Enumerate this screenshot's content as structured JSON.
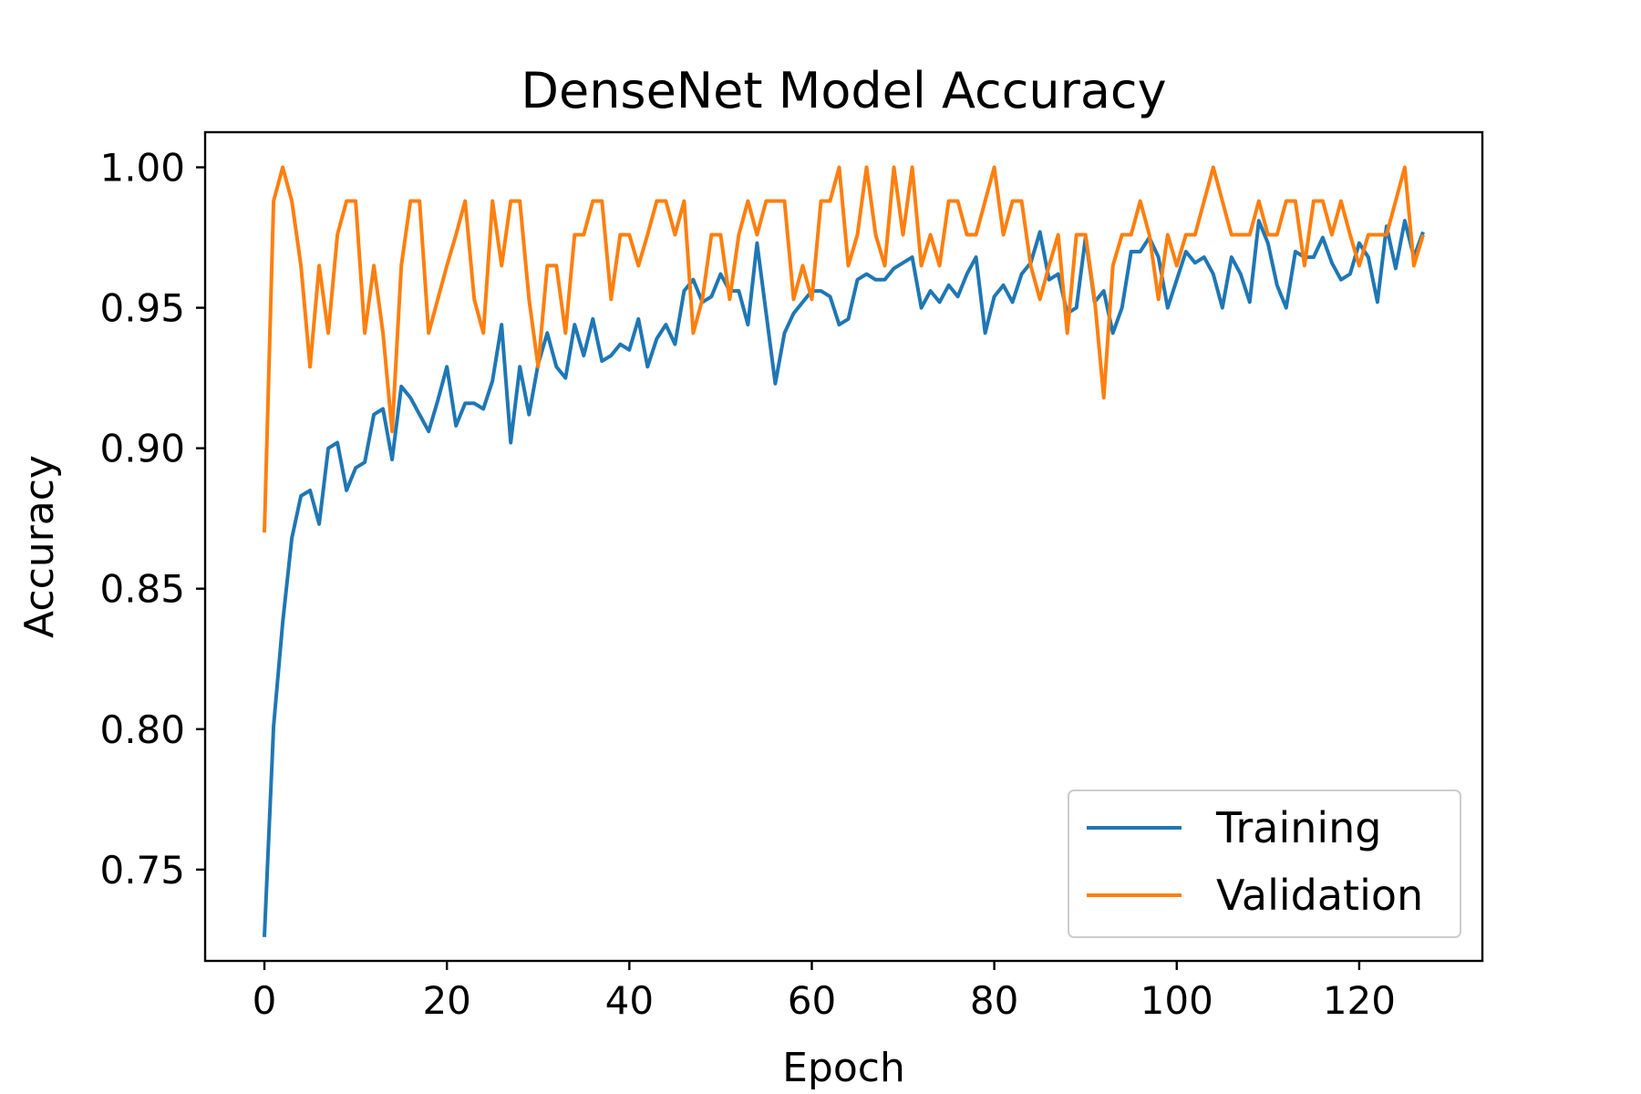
{
  "chart_data": {
    "type": "line",
    "title": "DenseNet Model Accuracy",
    "xlabel": "Epoch",
    "ylabel": "Accuracy",
    "xlim": [
      -6.5,
      133.5
    ],
    "ylim": [
      0.7175,
      1.0125
    ],
    "xticks": [
      0,
      20,
      40,
      60,
      80,
      100,
      120
    ],
    "yticks": [
      0.75,
      0.8,
      0.85,
      0.9,
      0.95,
      1.0
    ],
    "ytick_labels": [
      "0.75",
      "0.80",
      "0.85",
      "0.90",
      "0.95",
      "1.00"
    ],
    "grid": false,
    "legend_position": "lower-right",
    "series": [
      {
        "name": "Training",
        "color": "#1f77b4",
        "values": [
          0.726,
          0.801,
          0.838,
          0.868,
          0.883,
          0.885,
          0.873,
          0.9,
          0.902,
          0.885,
          0.893,
          0.895,
          0.912,
          0.914,
          0.896,
          0.922,
          0.918,
          0.912,
          0.906,
          0.917,
          0.929,
          0.908,
          0.916,
          0.916,
          0.914,
          0.924,
          0.944,
          0.902,
          0.929,
          0.912,
          0.93,
          0.941,
          0.929,
          0.925,
          0.944,
          0.933,
          0.946,
          0.931,
          0.933,
          0.937,
          0.935,
          0.946,
          0.929,
          0.939,
          0.944,
          0.937,
          0.956,
          0.96,
          0.952,
          0.954,
          0.962,
          0.956,
          0.956,
          0.944,
          0.973,
          0.948,
          0.923,
          0.941,
          0.948,
          0.952,
          0.956,
          0.956,
          0.954,
          0.944,
          0.946,
          0.96,
          0.962,
          0.96,
          0.96,
          0.964,
          0.966,
          0.968,
          0.95,
          0.956,
          0.952,
          0.958,
          0.954,
          0.962,
          0.968,
          0.941,
          0.954,
          0.958,
          0.952,
          0.962,
          0.966,
          0.977,
          0.96,
          0.962,
          0.948,
          0.95,
          0.975,
          0.952,
          0.956,
          0.941,
          0.95,
          0.97,
          0.97,
          0.975,
          0.968,
          0.95,
          0.96,
          0.97,
          0.966,
          0.968,
          0.962,
          0.95,
          0.968,
          0.962,
          0.952,
          0.981,
          0.973,
          0.958,
          0.95,
          0.97,
          0.968,
          0.968,
          0.975,
          0.966,
          0.96,
          0.962,
          0.973,
          0.968,
          0.952,
          0.979,
          0.964,
          0.981,
          0.968,
          0.977
        ]
      },
      {
        "name": "Validation",
        "color": "#ff7f0e",
        "values": [
          0.87,
          0.988,
          1.0,
          0.988,
          0.965,
          0.929,
          0.965,
          0.941,
          0.976,
          0.988,
          0.988,
          0.941,
          0.965,
          0.941,
          0.906,
          0.965,
          0.988,
          0.988,
          0.941,
          0.953,
          0.965,
          0.976,
          0.988,
          0.953,
          0.941,
          0.988,
          0.965,
          0.988,
          0.988,
          0.953,
          0.929,
          0.965,
          0.965,
          0.941,
          0.976,
          0.976,
          0.988,
          0.988,
          0.953,
          0.976,
          0.976,
          0.965,
          0.976,
          0.988,
          0.988,
          0.976,
          0.988,
          0.941,
          0.953,
          0.976,
          0.976,
          0.953,
          0.976,
          0.988,
          0.976,
          0.988,
          0.988,
          0.988,
          0.953,
          0.965,
          0.953,
          0.988,
          0.988,
          1.0,
          0.965,
          0.976,
          1.0,
          0.976,
          0.965,
          1.0,
          0.976,
          1.0,
          0.965,
          0.976,
          0.965,
          0.988,
          0.988,
          0.976,
          0.976,
          0.988,
          1.0,
          0.976,
          0.988,
          0.988,
          0.965,
          0.953,
          0.965,
          0.976,
          0.941,
          0.976,
          0.976,
          0.953,
          0.918,
          0.965,
          0.976,
          0.976,
          0.988,
          0.976,
          0.953,
          0.976,
          0.965,
          0.976,
          0.976,
          0.988,
          1.0,
          0.988,
          0.976,
          0.976,
          0.976,
          0.988,
          0.976,
          0.976,
          0.988,
          0.988,
          0.965,
          0.988,
          0.988,
          0.976,
          0.988,
          0.976,
          0.965,
          0.976,
          0.976,
          0.976,
          0.988,
          1.0,
          0.965,
          0.976
        ]
      }
    ]
  }
}
